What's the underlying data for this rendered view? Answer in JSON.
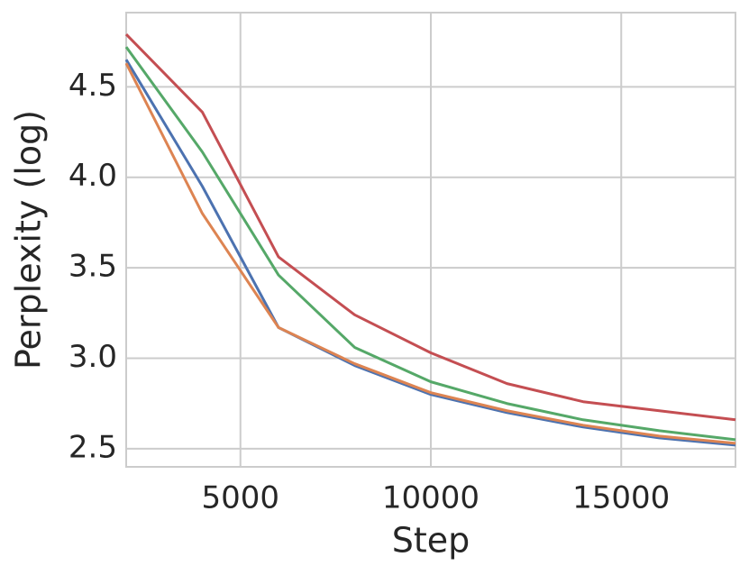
{
  "chart_data": {
    "type": "line",
    "x_label": "Step",
    "y_label": "Perplexity (log)",
    "x": [
      2000,
      4000,
      6000,
      8000,
      10000,
      12000,
      14000,
      16000,
      18000
    ],
    "series": [
      {
        "color": "#4c72b0",
        "values": [
          4.65,
          3.95,
          3.17,
          2.96,
          2.8,
          2.7,
          2.62,
          2.56,
          2.52
        ]
      },
      {
        "color": "#dd8452",
        "values": [
          4.63,
          3.8,
          3.17,
          2.97,
          2.81,
          2.71,
          2.63,
          2.57,
          2.53
        ]
      },
      {
        "color": "#55a868",
        "values": [
          4.72,
          4.14,
          3.46,
          3.06,
          2.87,
          2.75,
          2.66,
          2.6,
          2.55
        ]
      },
      {
        "color": "#c44e52",
        "values": [
          4.79,
          4.36,
          3.56,
          3.24,
          3.03,
          2.86,
          2.76,
          2.71,
          2.66
        ]
      }
    ],
    "xlim": [
      2000,
      18000
    ],
    "xticks": [
      5000,
      10000,
      15000
    ],
    "ylim": [
      2.4,
      4.91
    ],
    "yticks": [
      {
        "value": 2.5,
        "label": "2.5"
      },
      {
        "value": 3.0,
        "label": "3.0"
      },
      {
        "value": 3.5,
        "label": "3.5"
      },
      {
        "value": 4.0,
        "label": "4.0"
      },
      {
        "value": 4.5,
        "label": "4.5"
      }
    ],
    "grid": true
  }
}
